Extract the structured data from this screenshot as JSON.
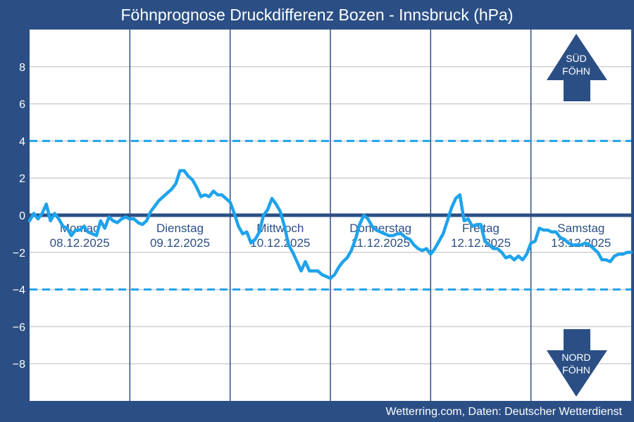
{
  "header": {
    "title": "Föhnprognose Druckdifferenz Bozen - Innsbruck (hPa)"
  },
  "footer": {
    "source": "Wetterring.com, Daten: Deutscher Wetterdienst"
  },
  "indicators": {
    "sued_line1": "SÜD",
    "sued_line2": "FÖHN",
    "nord_line1": "NORD",
    "nord_line2": "FÖHN"
  },
  "colors": {
    "background": "#2b4f85",
    "plot_background": "#ffffff",
    "grid": "#d0d0d0",
    "day_divider": "#2b4f85",
    "series": "#1fa3ec",
    "threshold": "#1fa3ec",
    "zero_line": "#2b4f85",
    "arrow": "#2b4f85"
  },
  "chart_data": {
    "type": "line",
    "title": "Föhnprognose Druckdifferenz Bozen - Innsbruck (hPa)",
    "xlabel": "",
    "ylabel": "",
    "ylim": [
      -10,
      10
    ],
    "xlim": [
      0,
      144
    ],
    "yticks": [
      {
        "value": 8,
        "label": "8"
      },
      {
        "value": 6,
        "label": "6"
      },
      {
        "value": 4,
        "label": "4"
      },
      {
        "value": 2,
        "label": "2"
      },
      {
        "value": 0,
        "label": "0"
      },
      {
        "value": -2,
        "label": "−2"
      },
      {
        "value": -4,
        "label": "−4"
      },
      {
        "value": -6,
        "label": "−6"
      },
      {
        "value": -8,
        "label": "−8"
      }
    ],
    "grid": true,
    "thresholds": [
      4,
      -4
    ],
    "zero_line": 0,
    "day_boundaries": [
      24,
      48,
      72,
      96,
      120
    ],
    "days": [
      {
        "name": "Montag",
        "date": "08.12.2025"
      },
      {
        "name": "Dienstag",
        "date": "09.12.2025"
      },
      {
        "name": "Mittwoch",
        "date": "10.12.2025"
      },
      {
        "name": "Donnerstag",
        "date": "11.12.2025"
      },
      {
        "name": "Freitag",
        "date": "12.12.2025"
      },
      {
        "name": "Samstag",
        "date": "13.12.2025"
      }
    ],
    "series": [
      {
        "x": [
          0,
          1,
          2,
          3,
          4,
          5,
          6,
          7,
          8,
          9,
          10,
          11,
          12,
          13,
          14,
          15,
          16,
          17,
          18,
          19,
          20,
          21,
          22,
          23,
          24,
          25,
          26,
          27,
          28,
          29,
          30,
          31,
          32,
          33,
          34,
          35,
          36,
          37,
          38,
          39,
          40,
          41,
          42,
          43,
          44,
          45,
          46,
          47,
          48,
          49,
          50,
          51,
          52,
          53,
          54,
          55,
          56,
          57,
          58,
          59,
          60,
          61,
          62,
          63,
          64,
          65,
          66,
          67,
          68,
          69,
          70,
          71,
          72,
          73,
          74,
          75,
          76,
          77,
          78,
          79,
          80,
          81,
          82,
          83,
          84,
          85,
          86,
          87,
          88,
          89,
          90,
          91,
          92,
          93,
          94,
          95,
          96,
          97,
          98,
          99,
          100,
          101,
          102,
          103,
          104,
          105,
          106,
          107,
          108,
          109,
          110,
          111,
          112,
          113,
          114,
          115,
          116,
          117,
          118,
          119,
          120,
          121,
          122,
          123,
          124,
          125,
          126,
          127,
          128,
          129,
          130,
          131,
          132,
          133,
          134,
          135,
          136,
          137,
          138,
          139,
          140,
          141,
          142,
          143,
          144
        ],
        "y": [
          -0.3,
          0.1,
          -0.2,
          0.1,
          0.6,
          -0.3,
          0.1,
          -0.2,
          -0.6,
          -0.7,
          -1.1,
          -0.8,
          -0.8,
          -0.6,
          -0.9,
          -1.0,
          -1.1,
          -0.3,
          -0.7,
          -0.1,
          -0.3,
          -0.4,
          -0.2,
          -0.1,
          -0.2,
          -0.2,
          -0.4,
          -0.5,
          -0.3,
          0.2,
          0.5,
          0.8,
          1.0,
          1.2,
          1.4,
          1.7,
          2.4,
          2.4,
          2.1,
          1.9,
          1.5,
          1.0,
          1.1,
          1.0,
          1.3,
          1.1,
          1.1,
          0.9,
          0.7,
          0.1,
          -0.6,
          -1.0,
          -0.9,
          -1.5,
          -1.3,
          -0.9,
          0.0,
          0.3,
          0.9,
          0.6,
          0.2,
          -0.6,
          -1.6,
          -2.0,
          -2.5,
          -3.0,
          -2.5,
          -3.0,
          -3.0,
          -3.0,
          -3.2,
          -3.3,
          -3.4,
          -3.2,
          -2.8,
          -2.5,
          -2.3,
          -1.9,
          -1.3,
          -0.5,
          0.0,
          -0.2,
          -0.6,
          -0.8,
          -0.9,
          -1.0,
          -1.1,
          -1.1,
          -1.0,
          -1.0,
          -1.2,
          -1.3,
          -1.6,
          -1.8,
          -1.9,
          -1.8,
          -2.1,
          -1.8,
          -1.4,
          -1.0,
          -0.3,
          0.4,
          0.9,
          1.1,
          -0.3,
          -0.2,
          -0.6,
          -0.5,
          -0.5,
          -1.4,
          -1.6,
          -1.8,
          -1.8,
          -2.0,
          -2.3,
          -2.2,
          -2.4,
          -2.2,
          -2.4,
          -2.1,
          -1.5,
          -1.4,
          -0.7,
          -0.8,
          -0.8,
          -0.9,
          -0.9,
          -1.2,
          -1.3,
          -1.5,
          -1.6,
          -1.6,
          -1.6,
          -1.5,
          -1.6,
          -1.8,
          -2.0,
          -2.4,
          -2.4,
          -2.5,
          -2.2,
          -2.1,
          -2.1,
          -2.0,
          -2.0
        ]
      }
    ]
  }
}
